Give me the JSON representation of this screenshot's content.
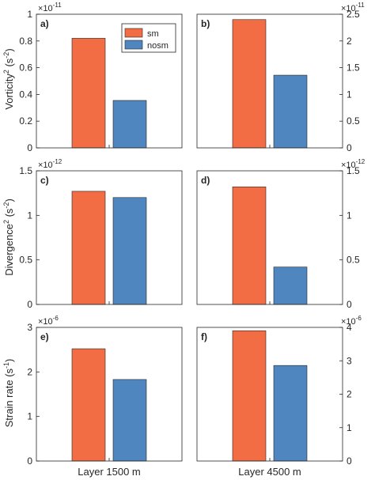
{
  "figure": {
    "xlabels": [
      "Layer 1500 m",
      "Layer 4500 m"
    ],
    "ylabels": [
      {
        "main": "Vorticity",
        "sup1": "2",
        "mid": " (s",
        "sup2": "-2",
        "end": ")"
      },
      {
        "main": "Divergence",
        "sup1": "2",
        "mid": " (s",
        "sup2": "-2",
        "end": ")"
      },
      {
        "main": "Strain rate (s",
        "sup1": "",
        "mid": "",
        "sup2": "-1",
        "end": ")"
      }
    ],
    "legend": [
      {
        "name": "sm",
        "color": "#f26d43"
      },
      {
        "name": "nosm",
        "color": "#4f86bf"
      }
    ]
  },
  "chart_data": [
    {
      "type": "bar",
      "panel": "a)",
      "layer": "Layer 1500 m",
      "axis_side": "left",
      "exponent": "-11",
      "ylim": [
        0,
        1
      ],
      "yticks": [
        "0",
        "0.2",
        "0.4",
        "0.6",
        "0.8",
        "1"
      ],
      "series": [
        {
          "name": "sm",
          "values": [
            0.82
          ]
        },
        {
          "name": "nosm",
          "values": [
            0.355
          ]
        }
      ]
    },
    {
      "type": "bar",
      "panel": "b)",
      "layer": "Layer 4500 m",
      "axis_side": "right",
      "exponent": "-11",
      "ylim": [
        0,
        2.5
      ],
      "yticks": [
        "0",
        "0.5",
        "1",
        "1.5",
        "2",
        "2.5"
      ],
      "series": [
        {
          "name": "sm",
          "values": [
            2.4
          ]
        },
        {
          "name": "nosm",
          "values": [
            1.36
          ]
        }
      ]
    },
    {
      "type": "bar",
      "panel": "c)",
      "layer": "Layer 1500 m",
      "axis_side": "left",
      "exponent": "-12",
      "ylim": [
        0,
        1.5
      ],
      "yticks": [
        "0",
        "0.5",
        "1",
        "1.5"
      ],
      "series": [
        {
          "name": "sm",
          "values": [
            1.27
          ]
        },
        {
          "name": "nosm",
          "values": [
            1.2
          ]
        }
      ]
    },
    {
      "type": "bar",
      "panel": "d)",
      "layer": "Layer 4500 m",
      "axis_side": "right",
      "exponent": "-12",
      "ylim": [
        0,
        1.5
      ],
      "yticks": [
        "0",
        "0.5",
        "1",
        "1.5"
      ],
      "series": [
        {
          "name": "sm",
          "values": [
            1.32
          ]
        },
        {
          "name": "nosm",
          "values": [
            0.42
          ]
        }
      ]
    },
    {
      "type": "bar",
      "panel": "e)",
      "layer": "Layer 1500 m",
      "axis_side": "left",
      "exponent": "-6",
      "ylim": [
        0,
        3
      ],
      "yticks": [
        "0",
        "1",
        "2",
        "3"
      ],
      "series": [
        {
          "name": "sm",
          "values": [
            2.52
          ]
        },
        {
          "name": "nosm",
          "values": [
            1.83
          ]
        }
      ]
    },
    {
      "type": "bar",
      "panel": "f)",
      "layer": "Layer 4500 m",
      "axis_side": "right",
      "exponent": "-6",
      "ylim": [
        0,
        4
      ],
      "yticks": [
        "0",
        "1",
        "2",
        "3",
        "4"
      ],
      "series": [
        {
          "name": "sm",
          "values": [
            3.9
          ]
        },
        {
          "name": "nosm",
          "values": [
            2.86
          ]
        }
      ]
    }
  ]
}
